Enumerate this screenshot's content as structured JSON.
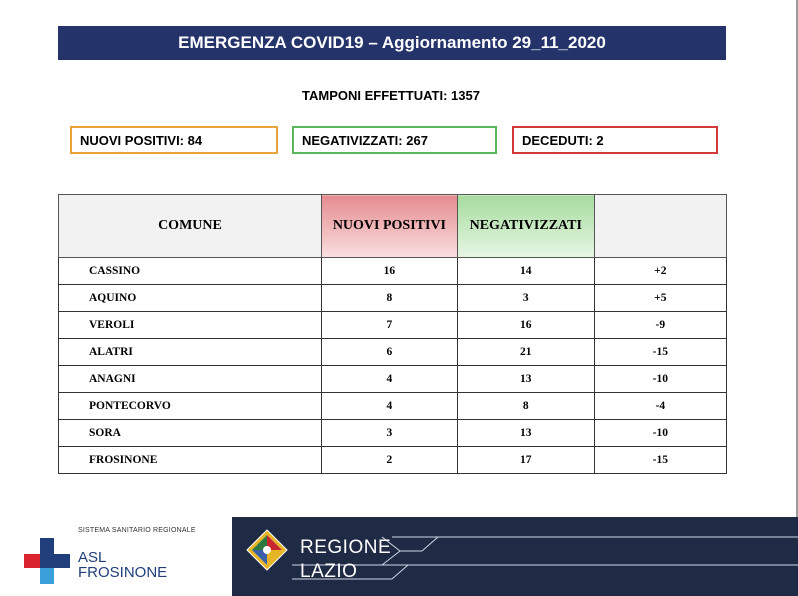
{
  "banner": {
    "title": "EMERGENZA COVID19 – Aggiornamento 29_11_2020"
  },
  "tamponi": "TAMPONI EFFETTUATI: 1357",
  "summary": {
    "nuovi_positivi": "NUOVI POSITIVI: 84",
    "negativizzati": "NEGATIVIZZATI: 267",
    "deceduti": "DECEDUTI: 2"
  },
  "table": {
    "headers": [
      "COMUNE",
      "NUOVI POSITIVI",
      "NEGATIVIZZATI",
      ""
    ],
    "rows": [
      {
        "comune": "CASSINO",
        "nuovi": "16",
        "negativizzati": "14",
        "diff": "+2"
      },
      {
        "comune": "AQUINO",
        "nuovi": "8",
        "negativizzati": "3",
        "diff": "+5"
      },
      {
        "comune": "VEROLI",
        "nuovi": "7",
        "negativizzati": "16",
        "diff": "-9"
      },
      {
        "comune": "ALATRI",
        "nuovi": "6",
        "negativizzati": "21",
        "diff": "-15"
      },
      {
        "comune": "ANAGNI",
        "nuovi": "4",
        "negativizzati": "13",
        "diff": "-10"
      },
      {
        "comune": "PONTECORVO",
        "nuovi": "4",
        "negativizzati": "8",
        "diff": "-4"
      },
      {
        "comune": "SORA",
        "nuovi": "3",
        "negativizzati": "13",
        "diff": "-10"
      },
      {
        "comune": "FROSINONE",
        "nuovi": "2",
        "negativizzati": "17",
        "diff": "-15"
      }
    ]
  },
  "footer": {
    "asl_sistema": "SISTEMA SANITARIO REGIONALE",
    "asl_line1": "ASL",
    "asl_line2": "FROSINONE",
    "regione_line1": "REGIONE",
    "regione_line2": "LAZIO"
  },
  "colors": {
    "banner": "#24346b",
    "nuovi_positivi": "#e8a33d",
    "negativizzati": "#5cb85c",
    "deceduti": "#d23a3a",
    "regione_bg": "#1f2a44"
  },
  "icons": {
    "asl_logo": "asl-cross-icon",
    "regione_logo": "regione-lazio-emblem-icon"
  }
}
